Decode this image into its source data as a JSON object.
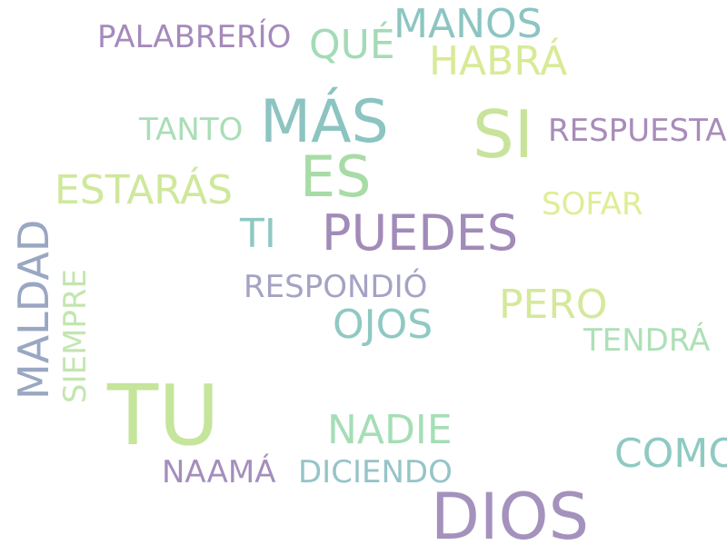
{
  "words": [
    {
      "text": "TU",
      "color": "#c5e59b"
    },
    {
      "text": "DIOS",
      "color": "#a492bd"
    },
    {
      "text": "SI",
      "color": "#c8e49a"
    },
    {
      "text": "MÁS",
      "color": "#8cc4c1"
    },
    {
      "text": "ES",
      "color": "#a8dca6"
    },
    {
      "text": "PUEDES",
      "color": "#a18bb8"
    },
    {
      "text": "MALDAD",
      "color": "#9aa7c3"
    },
    {
      "text": "MANOS",
      "color": "#8cc5c2"
    },
    {
      "text": "QUÉ",
      "color": "#a3dbb6"
    },
    {
      "text": "HABRÁ",
      "color": "#d8ea98"
    },
    {
      "text": "PALABRERÍO",
      "color": "#a58abb"
    },
    {
      "text": "RESPUESTA",
      "color": "#a88cb9"
    },
    {
      "text": "ESTARÁS",
      "color": "#cfe89c"
    },
    {
      "text": "TANTO",
      "color": "#a9deb5"
    },
    {
      "text": "TI",
      "color": "#8fc7c4"
    },
    {
      "text": "SOFAR",
      "color": "#e0ed96"
    },
    {
      "text": "SIEMPRE",
      "color": "#c2e6b0"
    },
    {
      "text": "RESPONDIÓ",
      "color": "#a4a3c4"
    },
    {
      "text": "OJOS",
      "color": "#8fc9c2"
    },
    {
      "text": "PERO",
      "color": "#d4e99b"
    },
    {
      "text": "TENDRÁ",
      "color": "#ade0b6"
    },
    {
      "text": "NADIE",
      "color": "#a5deb6"
    },
    {
      "text": "COMO",
      "color": "#8fcac2"
    },
    {
      "text": "NAAMÁ",
      "color": "#a48ebb"
    },
    {
      "text": "DICIENDO",
      "color": "#95c4c8"
    }
  ]
}
